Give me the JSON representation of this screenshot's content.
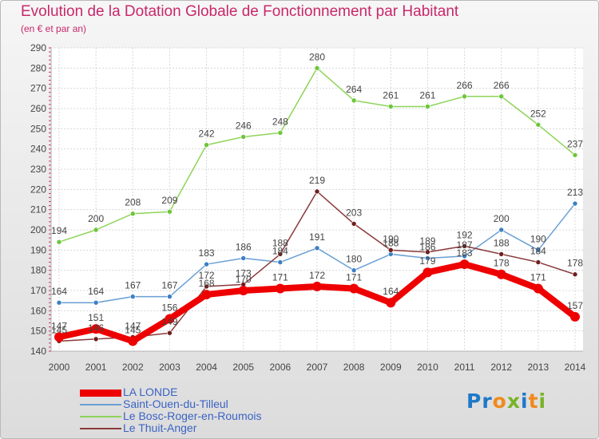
{
  "chart_data": {
    "type": "line",
    "title": "Evolution de la Dotation Globale de Fonctionnement par Habitant",
    "subtitle": "(en € et par an)",
    "xlabel": "",
    "ylabel": "",
    "ylim": [
      140,
      290
    ],
    "yticks": [
      140,
      150,
      160,
      170,
      180,
      190,
      200,
      210,
      220,
      230,
      240,
      250,
      260,
      270,
      280,
      290
    ],
    "x": [
      "2000",
      "2001",
      "2002",
      "2003",
      "2004",
      "2005",
      "2006",
      "2007",
      "2008",
      "2009",
      "2010",
      "2011",
      "2012",
      "2013",
      "2014"
    ],
    "series": [
      {
        "name": "Le Bosc-Roger-en-Roumois",
        "color": "#8ed45a",
        "marker": "#6cc63a",
        "values": [
          194,
          200,
          208,
          209,
          242,
          246,
          248,
          280,
          264,
          261,
          261,
          266,
          266,
          252,
          237
        ]
      },
      {
        "name": "Saint-Ouen-du-Tilleul",
        "color": "#6a9fd4",
        "marker": "#3d7fc4",
        "values": [
          164,
          164,
          167,
          167,
          183,
          186,
          184,
          191,
          180,
          188,
          186,
          187,
          200,
          190,
          213
        ]
      },
      {
        "name": "Le Thuit-Anger",
        "color": "#8b3a3a",
        "marker": "#6e1e1e",
        "values": [
          145,
          146,
          147,
          149,
          172,
          173,
          188,
          219,
          203,
          190,
          189,
          192,
          188,
          184,
          178
        ]
      },
      {
        "name": "LA LONDE",
        "color": "#ee0000",
        "marker": "#ee0000",
        "values": [
          147,
          151,
          145,
          156,
          168,
          170,
          171,
          172,
          171,
          164,
          179,
          183,
          178,
          171,
          157
        ]
      }
    ],
    "labels": [
      {
        "text": "194",
        "i": 0,
        "v": 194,
        "dy": -10
      },
      {
        "text": "200",
        "i": 1,
        "v": 200,
        "dy": -10
      },
      {
        "text": "208",
        "i": 2,
        "v": 208,
        "dy": -10
      },
      {
        "text": "209",
        "i": 3,
        "v": 209,
        "dy": -10
      },
      {
        "text": "242",
        "i": 4,
        "v": 242,
        "dy": -10
      },
      {
        "text": "246",
        "i": 5,
        "v": 246,
        "dy": -10
      },
      {
        "text": "248",
        "i": 6,
        "v": 248,
        "dy": -10
      },
      {
        "text": "280",
        "i": 7,
        "v": 280,
        "dy": -10
      },
      {
        "text": "264",
        "i": 8,
        "v": 264,
        "dy": -10
      },
      {
        "text": "261",
        "i": 9,
        "v": 261,
        "dy": -10
      },
      {
        "text": "261",
        "i": 10,
        "v": 261,
        "dy": -10
      },
      {
        "text": "266",
        "i": 11,
        "v": 266,
        "dy": -10
      },
      {
        "text": "266",
        "i": 12,
        "v": 266,
        "dy": -10
      },
      {
        "text": "252",
        "i": 13,
        "v": 252,
        "dy": -10
      },
      {
        "text": "237",
        "i": 14,
        "v": 237,
        "dy": -10
      },
      {
        "text": "164",
        "i": 0,
        "v": 164,
        "dy": -10
      },
      {
        "text": "164",
        "i": 1,
        "v": 164,
        "dy": -10
      },
      {
        "text": "167",
        "i": 2,
        "v": 167,
        "dy": -10
      },
      {
        "text": "167",
        "i": 3,
        "v": 167,
        "dy": -10
      },
      {
        "text": "183",
        "i": 4,
        "v": 183,
        "dy": -10
      },
      {
        "text": "186",
        "i": 5,
        "v": 186,
        "dy": -10
      },
      {
        "text": "184",
        "i": 6,
        "v": 184,
        "dy": -10
      },
      {
        "text": "191",
        "i": 7,
        "v": 191,
        "dy": -10
      },
      {
        "text": "180",
        "i": 8,
        "v": 180,
        "dy": -10
      },
      {
        "text": "188",
        "i": 9,
        "v": 188,
        "dy": -10
      },
      {
        "text": "186",
        "i": 10,
        "v": 186,
        "dy": -10
      },
      {
        "text": "187",
        "i": 11,
        "v": 187,
        "dy": -10
      },
      {
        "text": "200",
        "i": 12,
        "v": 200,
        "dy": -10
      },
      {
        "text": "190",
        "i": 13,
        "v": 190,
        "dy": -10
      },
      {
        "text": "213",
        "i": 14,
        "v": 213,
        "dy": -10
      },
      {
        "text": "145",
        "i": 0,
        "v": 145,
        "dy": -10
      },
      {
        "text": "146",
        "i": 1,
        "v": 146,
        "dy": -10
      },
      {
        "text": "147",
        "i": 2,
        "v": 147,
        "dy": -10
      },
      {
        "text": "149",
        "i": 3,
        "v": 149,
        "dy": -10
      },
      {
        "text": "172",
        "i": 4,
        "v": 172,
        "dy": -10
      },
      {
        "text": "173",
        "i": 5,
        "v": 173,
        "dy": -10
      },
      {
        "text": "188",
        "i": 6,
        "v": 188,
        "dy": -10
      },
      {
        "text": "219",
        "i": 7,
        "v": 219,
        "dy": -10
      },
      {
        "text": "203",
        "i": 8,
        "v": 203,
        "dy": -10
      },
      {
        "text": "190",
        "i": 9,
        "v": 190,
        "dy": -10
      },
      {
        "text": "189",
        "i": 10,
        "v": 189,
        "dy": -10
      },
      {
        "text": "192",
        "i": 11,
        "v": 192,
        "dy": -10
      },
      {
        "text": "188",
        "i": 12,
        "v": 188,
        "dy": -10
      },
      {
        "text": "184",
        "i": 13,
        "v": 184,
        "dy": -10
      },
      {
        "text": "178",
        "i": 14,
        "v": 178,
        "dy": -10
      },
      {
        "text": "147",
        "i": 0,
        "v": 147,
        "dy": -10
      },
      {
        "text": "151",
        "i": 1,
        "v": 151,
        "dy": -10
      },
      {
        "text": "145",
        "i": 2,
        "v": 145,
        "dy": -10
      },
      {
        "text": "156",
        "i": 3,
        "v": 156,
        "dy": -10
      },
      {
        "text": "168",
        "i": 4,
        "v": 168,
        "dy": -10
      },
      {
        "text": "170",
        "i": 5,
        "v": 170,
        "dy": -10
      },
      {
        "text": "171",
        "i": 6,
        "v": 171,
        "dy": -10
      },
      {
        "text": "172",
        "i": 7,
        "v": 172,
        "dy": -10
      },
      {
        "text": "171",
        "i": 8,
        "v": 171,
        "dy": -10
      },
      {
        "text": "164",
        "i": 9,
        "v": 164,
        "dy": -10
      },
      {
        "text": "179",
        "i": 10,
        "v": 179,
        "dy": -10
      },
      {
        "text": "183",
        "i": 11,
        "v": 183,
        "dy": -10
      },
      {
        "text": "178",
        "i": 12,
        "v": 178,
        "dy": -10
      },
      {
        "text": "171",
        "i": 13,
        "v": 171,
        "dy": -10
      },
      {
        "text": "157",
        "i": 14,
        "v": 157,
        "dy": -10
      }
    ]
  },
  "legend": {
    "items": [
      {
        "label": "LA LONDE",
        "color": "#ee0000",
        "weight": "thick"
      },
      {
        "label": "Saint-Ouen-du-Tilleul",
        "color": "#6a9fd4",
        "weight": "thin"
      },
      {
        "label": "Le Bosc-Roger-en-Roumois",
        "color": "#8ed45a",
        "weight": "thin"
      },
      {
        "label": "Le Thuit-Anger",
        "color": "#8b3a3a",
        "weight": "thin"
      }
    ]
  },
  "brand": {
    "logo_parts": [
      "Pr",
      "o",
      "x",
      "i",
      "t",
      "i"
    ]
  }
}
